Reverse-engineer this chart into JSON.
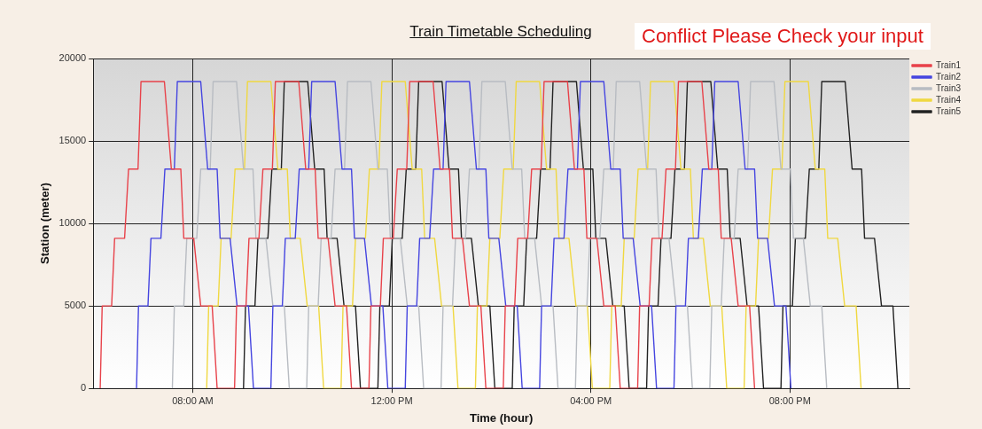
{
  "chart_data": {
    "type": "line",
    "title": "Train Timetable Scheduling",
    "xlabel": "Time (hour)",
    "ylabel": "Station (meter)",
    "annotations": [
      "Conflict Please Check your input"
    ],
    "xlim": [
      6,
      22.4
    ],
    "xticks": [
      {
        "value": 8,
        "label": "08:00 AM"
      },
      {
        "value": 12,
        "label": "12:00 PM"
      },
      {
        "value": 16,
        "label": "04:00 PM"
      },
      {
        "value": 20,
        "label": "08:00 PM"
      }
    ],
    "ylim": [
      0,
      20000
    ],
    "yticks": [
      0,
      5000,
      10000,
      15000,
      20000
    ],
    "grid": true,
    "legend": "top right",
    "marker": "none",
    "line_style": "solid",
    "series": [
      {
        "name": "Train1",
        "color": "#e8424a",
        "x": [
          6.14,
          6.18,
          6.37,
          6.43,
          6.63,
          6.71,
          6.9,
          6.96,
          7.43,
          7.57,
          7.76,
          7.82,
          8.02,
          8.16,
          8.39,
          8.49,
          8.84,
          8.88,
          9.07,
          9.13,
          9.33,
          9.41,
          9.6,
          9.66,
          10.13,
          10.27,
          10.46,
          10.52,
          10.72,
          10.86,
          11.09,
          11.19,
          11.54,
          11.58,
          11.77,
          11.83,
          12.03,
          12.11,
          12.3,
          12.36,
          12.83,
          12.97,
          13.16,
          13.22,
          13.42,
          13.56,
          13.79,
          13.89,
          14.24,
          14.28,
          14.47,
          14.53,
          14.73,
          14.81,
          15.0,
          15.06,
          15.53,
          15.67,
          15.86,
          15.92,
          16.12,
          16.26,
          16.49,
          16.59,
          16.94,
          16.98,
          17.17,
          17.23,
          17.43,
          17.51,
          17.7,
          17.76,
          18.23,
          18.37,
          18.56,
          18.62,
          18.82,
          18.96,
          19.19,
          19.29
        ],
        "values": [
          0,
          5000,
          5000,
          9100,
          9100,
          13300,
          13300,
          18600,
          18600,
          13300,
          13300,
          9100,
          9100,
          5000,
          5000,
          0,
          0,
          5000,
          5000,
          9100,
          9100,
          13300,
          13300,
          18600,
          18600,
          13300,
          13300,
          9100,
          9100,
          5000,
          5000,
          0,
          0,
          5000,
          5000,
          9100,
          9100,
          13300,
          13300,
          18600,
          18600,
          13300,
          13300,
          9100,
          9100,
          5000,
          5000,
          0,
          0,
          5000,
          5000,
          9100,
          9100,
          13300,
          13300,
          18600,
          18600,
          13300,
          13300,
          9100,
          9100,
          5000,
          5000,
          0,
          0,
          5000,
          5000,
          9100,
          9100,
          13300,
          13300,
          18600,
          18600,
          13300,
          13300,
          9100,
          9100,
          5000,
          5000,
          0
        ]
      },
      {
        "name": "Train2",
        "color": "#4545e0",
        "x": [
          6.87,
          6.91,
          7.1,
          7.16,
          7.36,
          7.44,
          7.63,
          7.69,
          8.16,
          8.3,
          8.49,
          8.55,
          8.75,
          8.89,
          9.12,
          9.22,
          9.57,
          9.61,
          9.8,
          9.86,
          10.06,
          10.14,
          10.33,
          10.39,
          10.86,
          11.0,
          11.19,
          11.25,
          11.45,
          11.59,
          11.82,
          11.92,
          12.27,
          12.31,
          12.5,
          12.56,
          12.76,
          12.84,
          13.03,
          13.09,
          13.56,
          13.7,
          13.89,
          13.95,
          14.15,
          14.29,
          14.52,
          14.62,
          14.97,
          15.01,
          15.2,
          15.26,
          15.46,
          15.54,
          15.73,
          15.79,
          16.26,
          16.4,
          16.59,
          16.65,
          16.85,
          16.99,
          17.22,
          17.32,
          17.67,
          17.71,
          17.9,
          17.96,
          18.16,
          18.24,
          18.43,
          18.49,
          18.96,
          19.1,
          19.29,
          19.35,
          19.55,
          19.69,
          19.92,
          20.02
        ],
        "values": [
          0,
          5000,
          5000,
          9100,
          9100,
          13300,
          13300,
          18600,
          18600,
          13300,
          13300,
          9100,
          9100,
          5000,
          5000,
          0,
          0,
          5000,
          5000,
          9100,
          9100,
          13300,
          13300,
          18600,
          18600,
          13300,
          13300,
          9100,
          9100,
          5000,
          5000,
          0,
          0,
          5000,
          5000,
          9100,
          9100,
          13300,
          13300,
          18600,
          18600,
          13300,
          13300,
          9100,
          9100,
          5000,
          5000,
          0,
          0,
          5000,
          5000,
          9100,
          9100,
          13300,
          13300,
          18600,
          18600,
          13300,
          13300,
          9100,
          9100,
          5000,
          5000,
          0,
          0,
          5000,
          5000,
          9100,
          9100,
          13300,
          13300,
          18600,
          18600,
          13300,
          13300,
          9100,
          9100,
          5000,
          5000,
          0
        ]
      },
      {
        "name": "Train3",
        "color": "#b8bcc2",
        "x": [
          7.59,
          7.63,
          7.82,
          7.88,
          8.08,
          8.16,
          8.35,
          8.41,
          8.88,
          9.02,
          9.21,
          9.27,
          9.47,
          9.61,
          9.84,
          9.94,
          10.29,
          10.33,
          10.52,
          10.58,
          10.78,
          10.86,
          11.05,
          11.11,
          11.58,
          11.72,
          11.91,
          11.97,
          12.17,
          12.31,
          12.54,
          12.64,
          12.99,
          13.03,
          13.22,
          13.28,
          13.48,
          13.56,
          13.75,
          13.81,
          14.28,
          14.42,
          14.61,
          14.67,
          14.87,
          15.01,
          15.24,
          15.34,
          15.69,
          15.73,
          15.92,
          15.98,
          16.18,
          16.26,
          16.45,
          16.51,
          16.98,
          17.12,
          17.31,
          17.37,
          17.57,
          17.71,
          17.94,
          18.04,
          18.39,
          18.43,
          18.62,
          18.68,
          18.88,
          18.96,
          19.15,
          19.21,
          19.68,
          19.82,
          20.01,
          20.07,
          20.27,
          20.41,
          20.64,
          20.74
        ],
        "values": [
          0,
          5000,
          5000,
          9100,
          9100,
          13300,
          13300,
          18600,
          18600,
          13300,
          13300,
          9100,
          9100,
          5000,
          5000,
          0,
          0,
          5000,
          5000,
          9100,
          9100,
          13300,
          13300,
          18600,
          18600,
          13300,
          13300,
          9100,
          9100,
          5000,
          5000,
          0,
          0,
          5000,
          5000,
          9100,
          9100,
          13300,
          13300,
          18600,
          18600,
          13300,
          13300,
          9100,
          9100,
          5000,
          5000,
          0,
          0,
          5000,
          5000,
          9100,
          9100,
          13300,
          13300,
          18600,
          18600,
          13300,
          13300,
          9100,
          9100,
          5000,
          5000,
          0,
          0,
          5000,
          5000,
          9100,
          9100,
          13300,
          13300,
          18600,
          18600,
          13300,
          13300,
          9100,
          9100,
          5000,
          5000,
          0
        ]
      },
      {
        "name": "Train4",
        "color": "#f0d840",
        "x": [
          8.28,
          8.32,
          8.51,
          8.57,
          8.77,
          8.85,
          9.04,
          9.1,
          9.57,
          9.71,
          9.9,
          9.96,
          10.16,
          10.3,
          10.53,
          10.63,
          10.98,
          11.02,
          11.21,
          11.27,
          11.47,
          11.55,
          11.74,
          11.8,
          12.27,
          12.41,
          12.6,
          12.66,
          12.86,
          13.0,
          13.23,
          13.33,
          13.68,
          13.72,
          13.91,
          13.97,
          14.17,
          14.25,
          14.44,
          14.5,
          14.97,
          15.11,
          15.3,
          15.36,
          15.56,
          15.7,
          15.93,
          16.03,
          16.38,
          16.42,
          16.61,
          16.67,
          16.87,
          16.95,
          17.14,
          17.2,
          17.67,
          17.81,
          18.0,
          18.06,
          18.26,
          18.4,
          18.63,
          18.73,
          19.08,
          19.12,
          19.31,
          19.37,
          19.57,
          19.65,
          19.84,
          19.9,
          20.37,
          20.51,
          20.7,
          20.76,
          20.96,
          21.1,
          21.33,
          21.43
        ],
        "values": [
          0,
          5000,
          5000,
          9100,
          9100,
          13300,
          13300,
          18600,
          18600,
          13300,
          13300,
          9100,
          9100,
          5000,
          5000,
          0,
          0,
          5000,
          5000,
          9100,
          9100,
          13300,
          13300,
          18600,
          18600,
          13300,
          13300,
          9100,
          9100,
          5000,
          5000,
          0,
          0,
          5000,
          5000,
          9100,
          9100,
          13300,
          13300,
          18600,
          18600,
          13300,
          13300,
          9100,
          9100,
          5000,
          5000,
          0,
          0,
          5000,
          5000,
          9100,
          9100,
          13300,
          13300,
          18600,
          18600,
          13300,
          13300,
          9100,
          9100,
          5000,
          5000,
          0,
          0,
          5000,
          5000,
          9100,
          9100,
          13300,
          13300,
          18600,
          18600,
          13300,
          13300,
          9100,
          9100,
          5000,
          5000,
          0
        ]
      },
      {
        "name": "Train5",
        "color": "#222222",
        "x": [
          9.02,
          9.06,
          9.25,
          9.31,
          9.51,
          9.59,
          9.78,
          9.84,
          10.31,
          10.45,
          10.64,
          10.7,
          10.9,
          11.04,
          11.27,
          11.37,
          11.72,
          11.76,
          11.95,
          12.01,
          12.21,
          12.29,
          12.48,
          12.54,
          13.01,
          13.15,
          13.34,
          13.4,
          13.6,
          13.74,
          13.97,
          14.07,
          14.42,
          14.46,
          14.65,
          14.71,
          14.91,
          14.99,
          15.18,
          15.24,
          15.71,
          15.85,
          16.04,
          16.1,
          16.3,
          16.44,
          16.67,
          16.77,
          17.12,
          17.16,
          17.35,
          17.41,
          17.61,
          17.69,
          17.88,
          17.94,
          18.41,
          18.55,
          18.74,
          18.8,
          19.0,
          19.14,
          19.37,
          19.47,
          19.82,
          19.86,
          20.05,
          20.11,
          20.31,
          20.39,
          20.58,
          20.64,
          21.11,
          21.25,
          21.44,
          21.5,
          21.7,
          21.84,
          22.07,
          22.17
        ],
        "values": [
          0,
          5000,
          5000,
          9100,
          9100,
          13300,
          13300,
          18600,
          18600,
          13300,
          13300,
          9100,
          9100,
          5000,
          5000,
          0,
          0,
          5000,
          5000,
          9100,
          9100,
          13300,
          13300,
          18600,
          18600,
          13300,
          13300,
          9100,
          9100,
          5000,
          5000,
          0,
          0,
          5000,
          5000,
          9100,
          9100,
          13300,
          13300,
          18600,
          18600,
          13300,
          13300,
          9100,
          9100,
          5000,
          5000,
          0,
          0,
          5000,
          5000,
          9100,
          9100,
          13300,
          13300,
          18600,
          18600,
          13300,
          13300,
          9100,
          9100,
          5000,
          5000,
          0,
          0,
          5000,
          5000,
          9100,
          9100,
          13300,
          13300,
          18600,
          18600,
          13300,
          13300,
          9100,
          9100,
          5000,
          5000,
          0
        ]
      }
    ]
  }
}
